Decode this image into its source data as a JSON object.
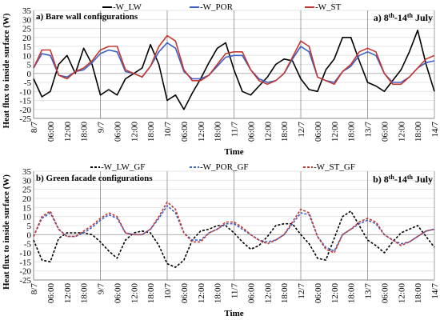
{
  "date_range_base": "8",
  "date_range_sup1": "th",
  "date_range_mid": "-14",
  "date_range_sup2": "th",
  "date_range_month": "July",
  "colors": {
    "LW": "#000000",
    "POR": "#3b5fc7",
    "ST": "#c2362f"
  },
  "chart_data": [
    {
      "type": "line",
      "panel_label": "a) Bare wall configurations",
      "date_prefix": "a)",
      "xlabel": "Time",
      "ylabel": "Heat flux to inside surface  (W)",
      "ylim": [
        -25,
        35
      ],
      "yticks": [
        -25,
        -20,
        -15,
        -10,
        -5,
        0,
        5,
        10,
        15,
        20,
        25,
        30,
        35
      ],
      "xlim": [
        0,
        144
      ],
      "x_tick_hours": [
        0,
        6,
        12,
        18,
        24,
        30,
        36,
        42,
        48,
        54,
        60,
        66,
        72,
        78,
        84,
        90,
        96,
        102,
        108,
        114,
        120,
        126,
        132,
        138,
        144
      ],
      "x_tick_labels": [
        "8/7",
        "06:00",
        "12:00",
        "18:00",
        "9/7",
        "06:00",
        "12:00",
        "18:00",
        "10/7",
        "06:00",
        "12:00",
        "18:00",
        "11/7",
        "06:00",
        "12:00",
        "18:00",
        "12/7",
        "06:00",
        "12:00",
        "18:00",
        "13/7",
        "06:00",
        "12:00",
        "18:00",
        "14/7"
      ],
      "day_boundaries": [
        0,
        24,
        48,
        72,
        96,
        120,
        144
      ],
      "legend": [
        "-W_LW",
        "-W_POR",
        "-W_ST"
      ],
      "dashed": false,
      "x": [
        0,
        3,
        6,
        9,
        12,
        15,
        18,
        21,
        24,
        27,
        30,
        33,
        36,
        39,
        42,
        45,
        48,
        51,
        54,
        57,
        60,
        63,
        66,
        69,
        72,
        75,
        78,
        81,
        84,
        87,
        90,
        93,
        96,
        99,
        102,
        105,
        108,
        111,
        114,
        117,
        120,
        123,
        126,
        129,
        132,
        135,
        138,
        141,
        144
      ],
      "series": [
        {
          "name": "-W_LW",
          "key": "LW",
          "values": [
            -3,
            -13,
            -10,
            5,
            10,
            0,
            14,
            5,
            -12,
            -9,
            -12,
            -3,
            0,
            3,
            16,
            5,
            -15,
            -12,
            -20,
            -11,
            -3,
            6,
            14,
            17,
            2,
            -10,
            -12,
            -7,
            -2,
            5,
            8,
            7,
            -3,
            -9,
            -10,
            2,
            8,
            20,
            20,
            7,
            -5,
            -7,
            -10,
            -4,
            2,
            12,
            24,
            5,
            -10
          ]
        },
        {
          "name": "-W_POR",
          "key": "POR",
          "values": [
            3,
            11,
            10,
            -1,
            -2,
            1,
            2,
            6,
            11,
            13,
            12,
            1,
            0,
            -2,
            4,
            12,
            17,
            14,
            1,
            -3,
            -3,
            -1,
            4,
            9,
            10,
            10,
            2,
            -3,
            -5,
            -4,
            0,
            8,
            15,
            12,
            -2,
            -4,
            -5,
            1,
            4,
            10,
            12,
            10,
            0,
            -5,
            -5,
            -2,
            3,
            6,
            7
          ]
        },
        {
          "name": "-W_ST",
          "key": "ST",
          "values": [
            3,
            13,
            13,
            -1,
            -3,
            1,
            3,
            7,
            13,
            15,
            15,
            2,
            0,
            -2,
            4,
            15,
            21,
            18,
            2,
            -4,
            -4,
            -1,
            5,
            11,
            12,
            12,
            2,
            -4,
            -6,
            -4,
            0,
            9,
            18,
            15,
            -2,
            -4,
            -6,
            1,
            5,
            12,
            14,
            12,
            0,
            -6,
            -6,
            -2,
            3,
            8,
            10
          ]
        }
      ]
    },
    {
      "type": "line",
      "panel_label": "b) Green facade configurations",
      "date_prefix": "b)",
      "xlabel": "Time",
      "ylabel": "Heat flux to inside surface  (W)",
      "ylim": [
        -25,
        35
      ],
      "yticks": [
        -25,
        -20,
        -15,
        -10,
        -5,
        0,
        5,
        10,
        15,
        20,
        25,
        30,
        35
      ],
      "xlim": [
        0,
        144
      ],
      "x_tick_hours": [
        0,
        6,
        12,
        18,
        24,
        30,
        36,
        42,
        48,
        54,
        60,
        66,
        72,
        78,
        84,
        90,
        96,
        102,
        108,
        114,
        120,
        126,
        132,
        138,
        144
      ],
      "x_tick_labels": [
        "8/7",
        "06:00",
        "12:00",
        "18:00",
        "9/7",
        "06:00",
        "12:00",
        "18:00",
        "10/7",
        "06:00",
        "12:00",
        "18:00",
        "11/7",
        "06:00",
        "12:00",
        "18:00",
        "12/7",
        "06:00",
        "12:00",
        "18:00",
        "13/7",
        "06:00",
        "12:00",
        "18:00",
        "14/7"
      ],
      "day_boundaries": [
        0,
        24,
        48,
        72,
        96,
        120,
        144
      ],
      "legend": [
        "-W_LW_GF",
        "-W_POR_GF",
        "-W_ST_GF"
      ],
      "dashed": true,
      "x": [
        0,
        3,
        6,
        9,
        12,
        15,
        18,
        21,
        24,
        27,
        30,
        33,
        36,
        39,
        42,
        45,
        48,
        51,
        54,
        57,
        60,
        63,
        66,
        69,
        72,
        75,
        78,
        81,
        84,
        87,
        90,
        93,
        96,
        99,
        102,
        105,
        108,
        111,
        114,
        117,
        120,
        123,
        126,
        129,
        132,
        135,
        138,
        141,
        144
      ],
      "series": [
        {
          "name": "-W_LW_GF",
          "key": "LW",
          "values": [
            -3,
            -14,
            -15,
            -2,
            1,
            1,
            1,
            0,
            -4,
            -9,
            -13,
            -3,
            1,
            2,
            1,
            -6,
            -16,
            -18,
            -14,
            -3,
            2,
            3,
            5,
            5,
            1,
            -4,
            -8,
            -6,
            -1,
            5,
            6,
            6,
            0,
            -5,
            -13,
            -14,
            -2,
            10,
            13,
            5,
            -3,
            -6,
            -10,
            -4,
            1,
            3,
            5,
            -1,
            -7
          ]
        },
        {
          "name": "-W_POR_GF",
          "key": "POR",
          "values": [
            -1,
            9,
            12,
            3,
            -1,
            -1,
            1,
            4,
            8,
            11,
            9,
            1,
            0,
            0,
            3,
            9,
            16,
            12,
            1,
            -3,
            -3,
            1,
            3,
            6,
            6,
            3,
            0,
            -3,
            -4,
            -3,
            0,
            6,
            12,
            11,
            -1,
            -7,
            -9,
            0,
            3,
            6,
            8,
            6,
            0,
            -3,
            -5,
            -4,
            -1,
            2,
            3
          ]
        },
        {
          "name": "-W_ST_GF",
          "key": "ST",
          "values": [
            -1,
            10,
            13,
            3,
            -1,
            -1,
            2,
            5,
            9,
            12,
            10,
            1,
            0,
            0,
            3,
            10,
            18,
            14,
            1,
            -4,
            -4,
            1,
            3,
            7,
            7,
            4,
            0,
            -3,
            -5,
            -3,
            0,
            7,
            14,
            12,
            -1,
            -8,
            -10,
            0,
            3,
            7,
            9,
            7,
            0,
            -3,
            -6,
            -4,
            -1,
            2,
            3
          ]
        }
      ]
    }
  ]
}
